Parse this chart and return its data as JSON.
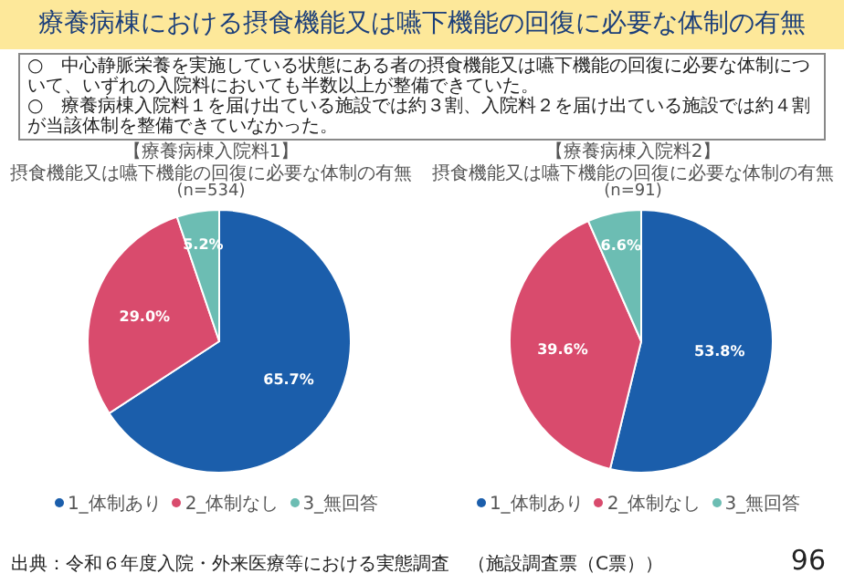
{
  "chart_data": [
    {
      "type": "other",
      "title": "療養病棟における摂食機能又は嚥下機能の回復に必要な体制の有無",
      "annotations": [
        "○　中心静脈栄養を実施している状態にある者の摂食機能又は嚥下機能の回復に必要な体制について、いずれの入院料においても半数以上が整備できていた。",
        "○　療養病棟入院料１を届け出ている施設では約３割、入院料２を届け出ている施設では約４割が当該体制を整備できていなかった。",
        "出典：令和６年度入院・外来医療等における実態調査　（施設調査票（C票））",
        "96"
      ]
    },
    {
      "type": "pie",
      "title": "【療養病棟入院料1】",
      "subtitle": "摂食機能又は嚥下機能の回復に必要な体制の有無",
      "annotations": [
        "(n=534)"
      ],
      "categories": [
        "1_体制あり",
        "2_体制なし",
        "3_無回答"
      ],
      "values": [
        65.7,
        29.0,
        5.2
      ],
      "value_labels": [
        "65.7%",
        "29.0%",
        "5.2%"
      ],
      "colors": [
        "#1b5eab",
        "#d94b6d",
        "#6cbdb3"
      ],
      "legend": "bottom"
    },
    {
      "type": "pie",
      "title": "【療養病棟入院料2】",
      "subtitle": "摂食機能又は嚥下機能の回復に必要な体制の有無",
      "annotations": [
        "(n=91)"
      ],
      "categories": [
        "1_体制あり",
        "2_体制なし",
        "3_無回答"
      ],
      "values": [
        53.8,
        39.6,
        6.6
      ],
      "value_labels": [
        "53.8%",
        "39.6%",
        "6.6%"
      ],
      "colors": [
        "#1b5eab",
        "#d94b6d",
        "#6cbdb3"
      ],
      "legend": "bottom"
    }
  ]
}
